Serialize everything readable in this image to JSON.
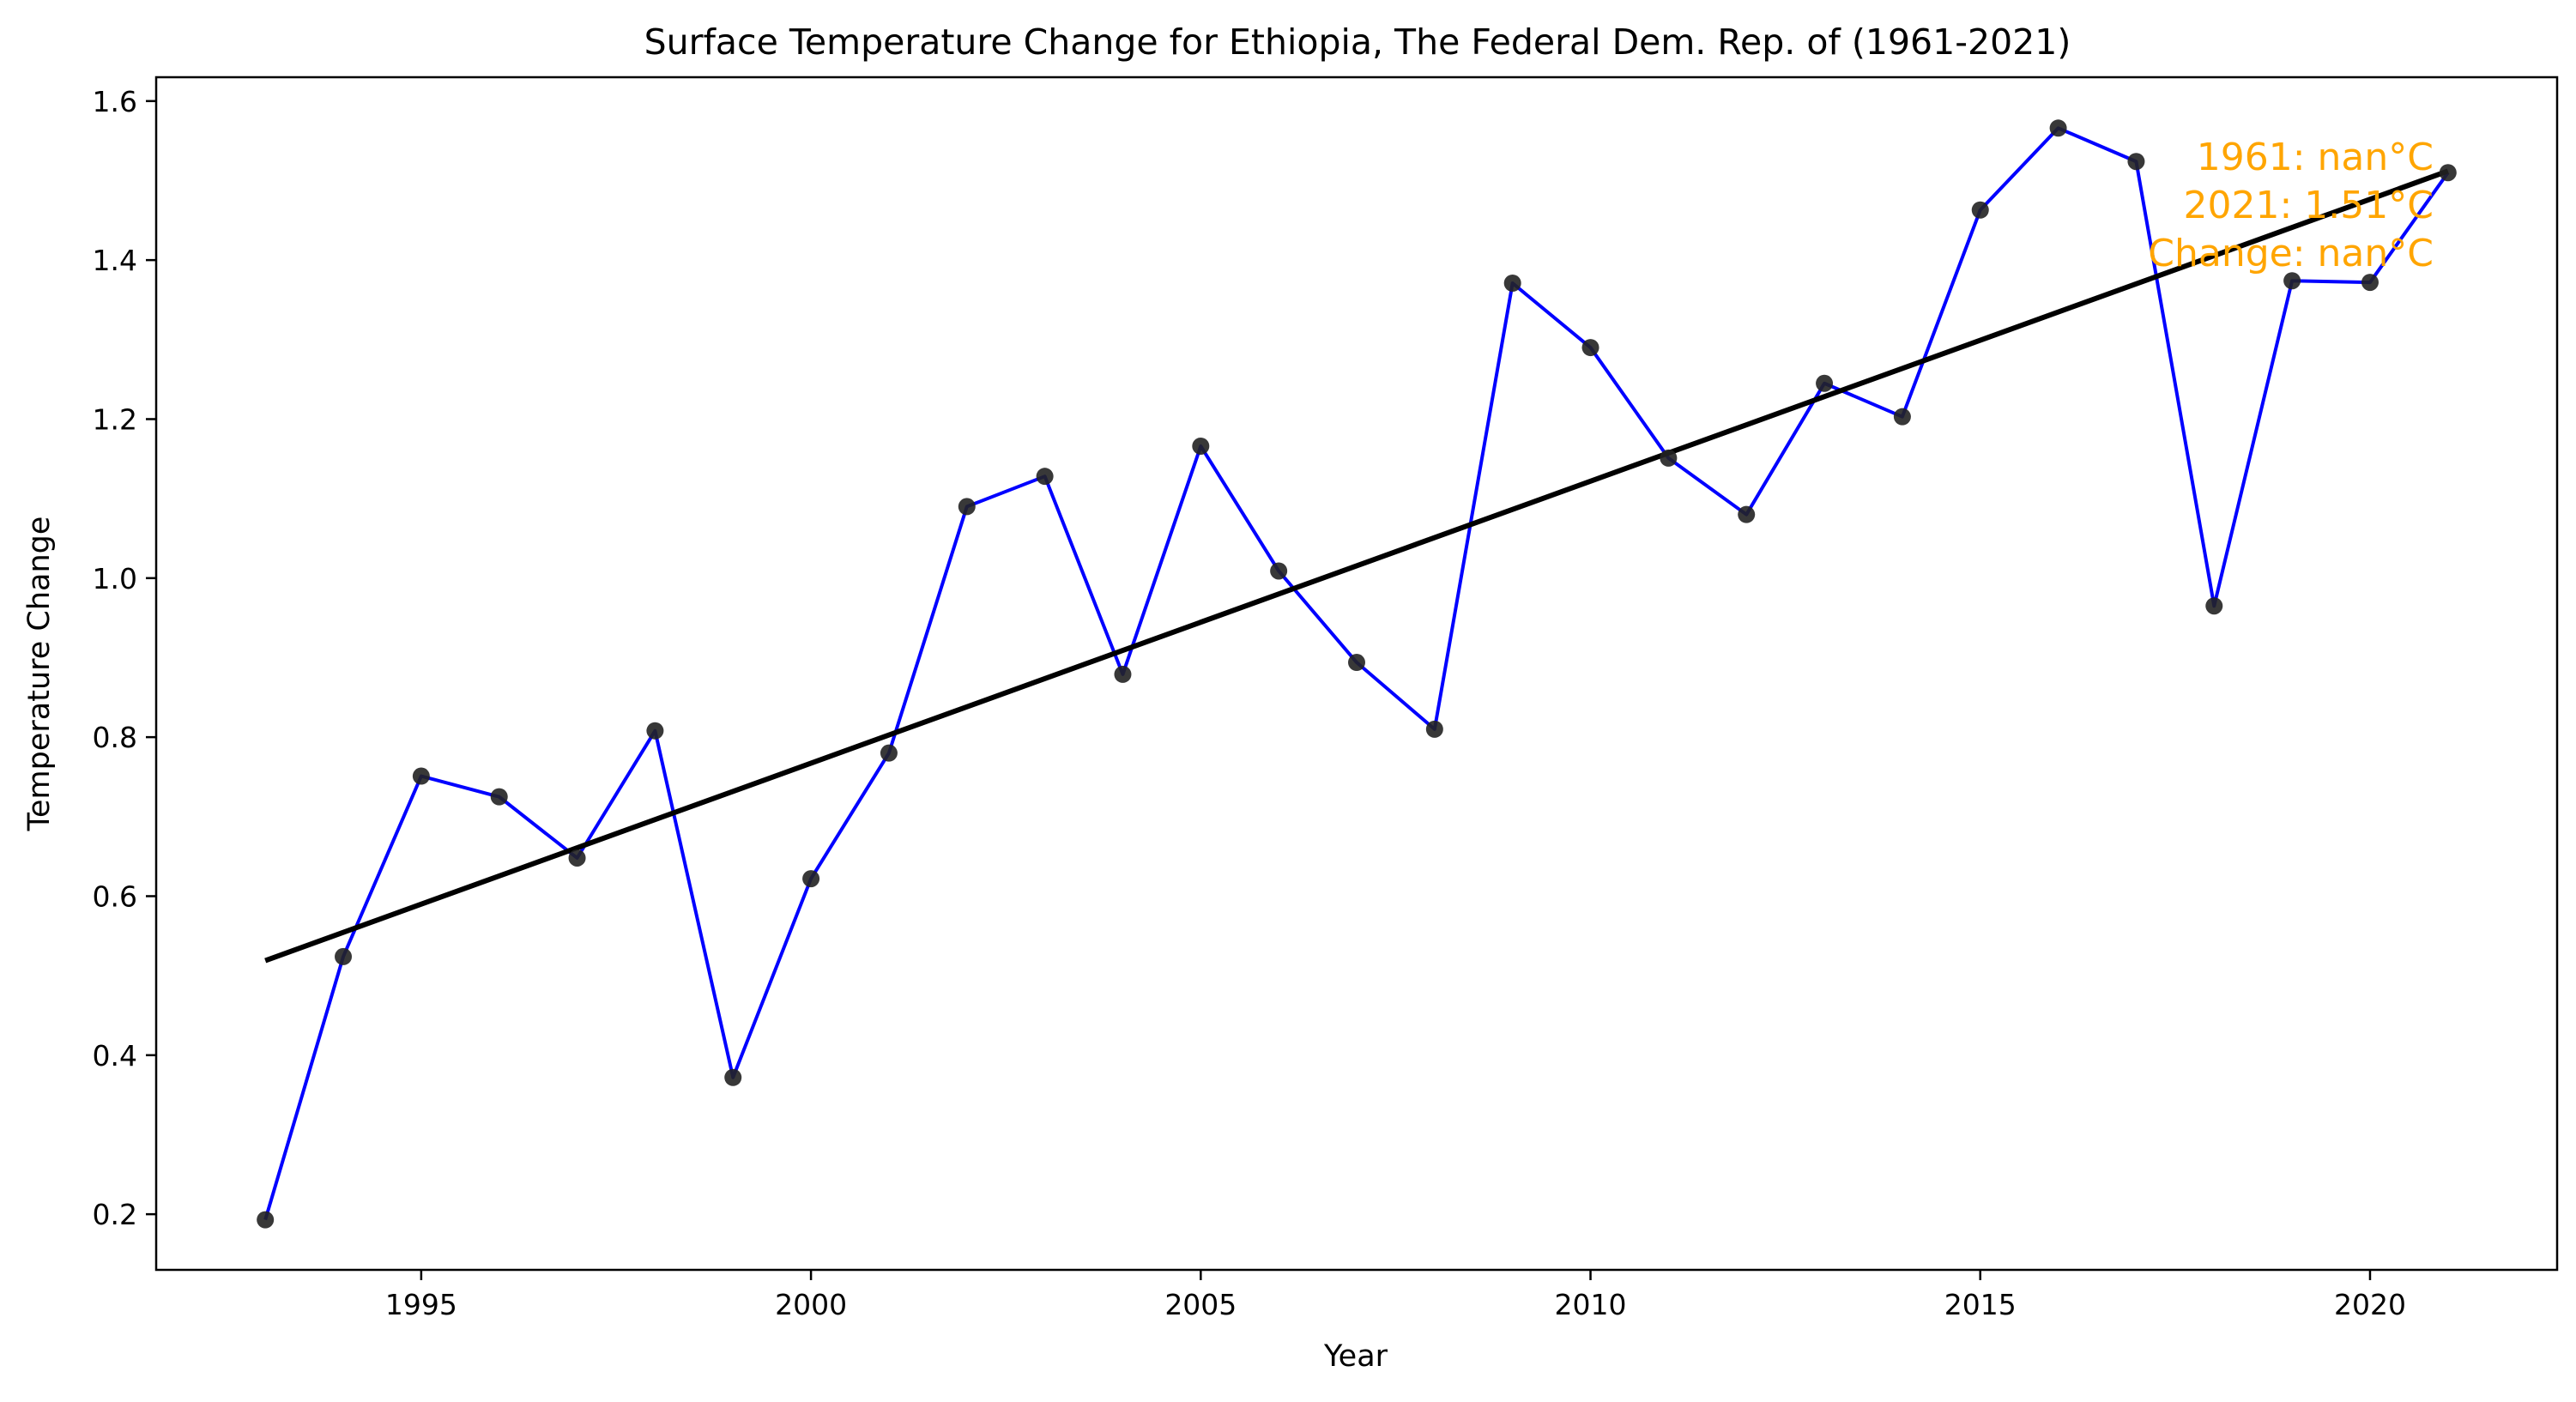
{
  "chart_data": {
    "type": "line",
    "title": "Surface Temperature Change for Ethiopia, The Federal Dem. Rep. of (1961-2021)",
    "xlabel": "Year",
    "ylabel": "Temperature Change",
    "xlim": [
      1991.6,
      2022.4
    ],
    "ylim": [
      0.13,
      1.63
    ],
    "x_ticks": [
      1995,
      2000,
      2005,
      2010,
      2015,
      2020
    ],
    "y_ticks": [
      0.2,
      0.4,
      0.6,
      0.8,
      1.0,
      1.2,
      1.4,
      1.6
    ],
    "grid": false,
    "series": [
      {
        "style": "line-with-markers",
        "line_color": "#0000ff",
        "marker_color": "#222222",
        "points": [
          {
            "x": 1993,
            "y": 0.193
          },
          {
            "x": 1994,
            "y": 0.524
          },
          {
            "x": 1995,
            "y": 0.751
          },
          {
            "x": 1996,
            "y": 0.725
          },
          {
            "x": 1997,
            "y": 0.648
          },
          {
            "x": 1998,
            "y": 0.808
          },
          {
            "x": 1999,
            "y": 0.372
          },
          {
            "x": 2000,
            "y": 0.622
          },
          {
            "x": 2001,
            "y": 0.78
          },
          {
            "x": 2002,
            "y": 1.09
          },
          {
            "x": 2003,
            "y": 1.128
          },
          {
            "x": 2004,
            "y": 0.879
          },
          {
            "x": 2005,
            "y": 1.166
          },
          {
            "x": 2006,
            "y": 1.009
          },
          {
            "x": 2007,
            "y": 0.894
          },
          {
            "x": 2008,
            "y": 0.81
          },
          {
            "x": 2009,
            "y": 1.371
          },
          {
            "x": 2010,
            "y": 1.29
          },
          {
            "x": 2011,
            "y": 1.151
          },
          {
            "x": 2012,
            "y": 1.08
          },
          {
            "x": 2013,
            "y": 1.245
          },
          {
            "x": 2014,
            "y": 1.203
          },
          {
            "x": 2015,
            "y": 1.463
          },
          {
            "x": 2016,
            "y": 1.566
          },
          {
            "x": 2017,
            "y": 1.524
          },
          {
            "x": 2018,
            "y": 0.965
          },
          {
            "x": 2019,
            "y": 1.374
          },
          {
            "x": 2020,
            "y": 1.372
          },
          {
            "x": 2021,
            "y": 1.51
          }
        ]
      },
      {
        "style": "trend-line",
        "line_color": "#000000",
        "points": [
          {
            "x": 1993,
            "y": 0.519
          },
          {
            "x": 2021,
            "y": 1.512
          }
        ]
      }
    ],
    "annotation": {
      "lines": [
        "1961: nan°C",
        "2021: 1.51°C",
        "Change: nan°C"
      ],
      "color": "#ffa500",
      "placement": "top-right"
    }
  }
}
